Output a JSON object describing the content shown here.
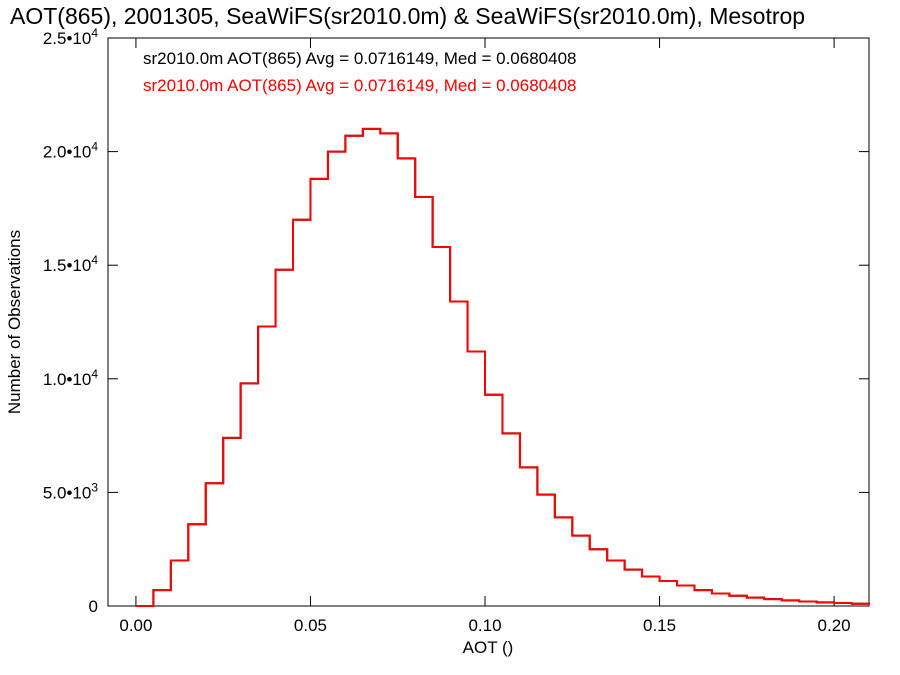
{
  "chart_data": {
    "type": "line",
    "title": "AOT(865), 2001305, SeaWiFS(sr2010.0m) & SeaWiFS(sr2010.0m), Mesotrop",
    "xlabel": "AOT ()",
    "ylabel": "Number of Observations",
    "xlim": [
      -0.008,
      0.21
    ],
    "ylim": [
      0,
      25000
    ],
    "x_ticks": [
      0.0,
      0.05,
      0.1,
      0.15,
      0.2
    ],
    "x_tick_labels": [
      "0.00",
      "0.05",
      "0.10",
      "0.15",
      "0.20"
    ],
    "y_ticks": [
      {
        "value": 0,
        "mantissa": "0",
        "exponent": ""
      },
      {
        "value": 5000,
        "mantissa": "5.0•10",
        "exponent": "3"
      },
      {
        "value": 10000,
        "mantissa": "1.0•10",
        "exponent": "4"
      },
      {
        "value": 15000,
        "mantissa": "1.5•10",
        "exponent": "4"
      },
      {
        "value": 20000,
        "mantissa": "2.0•10",
        "exponent": "4"
      },
      {
        "value": 25000,
        "mantissa": "2.5•10",
        "exponent": "4"
      }
    ],
    "legend_placement": "top-left",
    "series": [
      {
        "name": "sr2010.0m AOT(865) Avg = 0.0716149, Med = 0.0680408",
        "color": "#000000",
        "style": "step",
        "x": [
          0.0,
          0.005,
          0.01,
          0.015,
          0.02,
          0.025,
          0.03,
          0.035,
          0.04,
          0.045,
          0.05,
          0.055,
          0.06,
          0.065,
          0.07,
          0.075,
          0.08,
          0.085,
          0.09,
          0.095,
          0.1,
          0.105,
          0.11,
          0.115,
          0.12,
          0.125,
          0.13,
          0.135,
          0.14,
          0.145,
          0.15,
          0.155,
          0.16,
          0.165,
          0.17,
          0.175,
          0.18,
          0.185,
          0.19,
          0.195,
          0.2,
          0.205,
          0.21
        ],
        "y": [
          0,
          700,
          2000,
          3600,
          5400,
          7400,
          9800,
          12300,
          14800,
          17000,
          18800,
          20000,
          20700,
          21000,
          20800,
          19700,
          18000,
          15800,
          13400,
          11200,
          9300,
          7600,
          6100,
          4900,
          3900,
          3100,
          2500,
          2000,
          1600,
          1300,
          1100,
          900,
          700,
          550,
          450,
          370,
          300,
          250,
          200,
          160,
          130,
          100,
          70
        ]
      },
      {
        "name": "sr2010.0m AOT(865) Avg = 0.0716149, Med = 0.0680408",
        "color": "#ff0000",
        "style": "step",
        "x": [
          0.0,
          0.005,
          0.01,
          0.015,
          0.02,
          0.025,
          0.03,
          0.035,
          0.04,
          0.045,
          0.05,
          0.055,
          0.06,
          0.065,
          0.07,
          0.075,
          0.08,
          0.085,
          0.09,
          0.095,
          0.1,
          0.105,
          0.11,
          0.115,
          0.12,
          0.125,
          0.13,
          0.135,
          0.14,
          0.145,
          0.15,
          0.155,
          0.16,
          0.165,
          0.17,
          0.175,
          0.18,
          0.185,
          0.19,
          0.195,
          0.2,
          0.205,
          0.21
        ],
        "y": [
          0,
          700,
          2000,
          3600,
          5400,
          7400,
          9800,
          12300,
          14800,
          17000,
          18800,
          20000,
          20700,
          21000,
          20800,
          19700,
          18000,
          15800,
          13400,
          11200,
          9300,
          7600,
          6100,
          4900,
          3900,
          3100,
          2500,
          2000,
          1600,
          1300,
          1100,
          900,
          700,
          550,
          450,
          370,
          300,
          250,
          200,
          160,
          130,
          100,
          70
        ]
      }
    ]
  }
}
